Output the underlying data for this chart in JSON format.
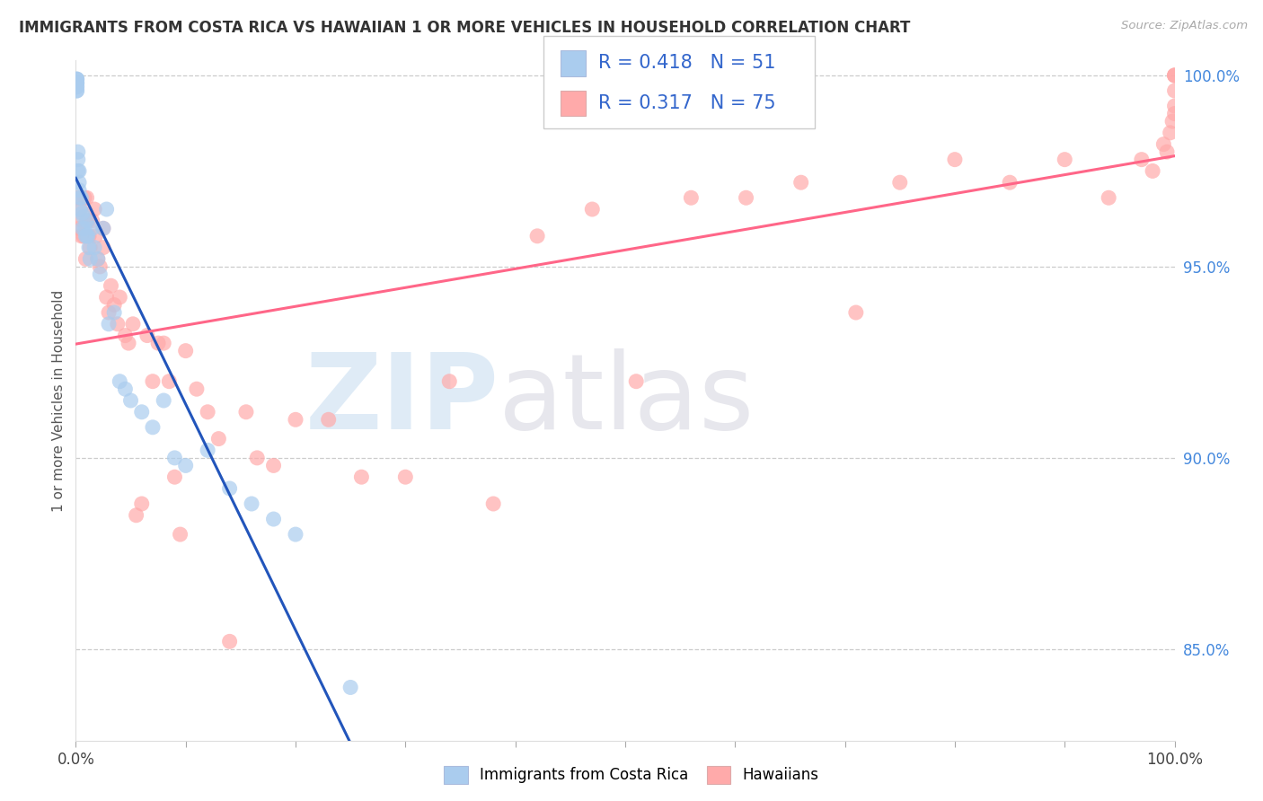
{
  "title": "IMMIGRANTS FROM COSTA RICA VS HAWAIIAN 1 OR MORE VEHICLES IN HOUSEHOLD CORRELATION CHART",
  "source": "Source: ZipAtlas.com",
  "ylabel": "1 or more Vehicles in Household",
  "legend_label1": "Immigrants from Costa Rica",
  "legend_label2": "Hawaiians",
  "R1": "0.418",
  "N1": "51",
  "R2": "0.317",
  "N2": "75",
  "color_blue": "#AACCEE",
  "color_pink": "#FFAAAA",
  "color_blue_line": "#2255BB",
  "color_pink_line": "#FF6688",
  "xlim": [
    0.0,
    1.0
  ],
  "ylim": [
    0.826,
    1.004
  ],
  "hlines": [
    0.85,
    0.9,
    0.95,
    1.0
  ],
  "right_ytick_labels": [
    "85.0%",
    "90.0%",
    "95.0%",
    "100.0%"
  ],
  "right_ytick_values": [
    0.85,
    0.9,
    0.95,
    1.0
  ],
  "blue_x": [
    0.001,
    0.001,
    0.001,
    0.001,
    0.001,
    0.001,
    0.001,
    0.001,
    0.001,
    0.001,
    0.002,
    0.002,
    0.002,
    0.003,
    0.003,
    0.003,
    0.004,
    0.004,
    0.005,
    0.006,
    0.006,
    0.007,
    0.008,
    0.009,
    0.01,
    0.01,
    0.011,
    0.012,
    0.013,
    0.015,
    0.017,
    0.02,
    0.022,
    0.025,
    0.028,
    0.03,
    0.035,
    0.04,
    0.045,
    0.05,
    0.06,
    0.07,
    0.08,
    0.09,
    0.1,
    0.12,
    0.14,
    0.16,
    0.18,
    0.2,
    0.25
  ],
  "blue_y": [
    0.999,
    0.999,
    0.999,
    0.998,
    0.998,
    0.998,
    0.997,
    0.997,
    0.996,
    0.996,
    0.98,
    0.978,
    0.975,
    0.975,
    0.972,
    0.97,
    0.968,
    0.965,
    0.968,
    0.964,
    0.96,
    0.963,
    0.96,
    0.958,
    0.962,
    0.958,
    0.958,
    0.955,
    0.952,
    0.96,
    0.955,
    0.952,
    0.948,
    0.96,
    0.965,
    0.935,
    0.938,
    0.92,
    0.918,
    0.915,
    0.912,
    0.908,
    0.915,
    0.9,
    0.898,
    0.902,
    0.892,
    0.888,
    0.884,
    0.88,
    0.84
  ],
  "pink_x": [
    0.002,
    0.003,
    0.004,
    0.005,
    0.006,
    0.007,
    0.008,
    0.009,
    0.01,
    0.011,
    0.012,
    0.013,
    0.015,
    0.017,
    0.018,
    0.02,
    0.022,
    0.025,
    0.025,
    0.028,
    0.03,
    0.032,
    0.035,
    0.038,
    0.04,
    0.045,
    0.048,
    0.052,
    0.055,
    0.06,
    0.065,
    0.07,
    0.075,
    0.08,
    0.085,
    0.09,
    0.095,
    0.1,
    0.11,
    0.12,
    0.13,
    0.14,
    0.155,
    0.165,
    0.18,
    0.2,
    0.23,
    0.26,
    0.3,
    0.34,
    0.38,
    0.42,
    0.47,
    0.51,
    0.56,
    0.61,
    0.66,
    0.71,
    0.75,
    0.8,
    0.85,
    0.9,
    0.94,
    0.97,
    0.98,
    0.99,
    0.993,
    0.996,
    0.998,
    1.0,
    1.0,
    1.0,
    1.0,
    1.0,
    1.0
  ],
  "pink_y": [
    0.968,
    0.96,
    0.965,
    0.958,
    0.962,
    0.958,
    0.968,
    0.952,
    0.968,
    0.962,
    0.958,
    0.955,
    0.962,
    0.965,
    0.958,
    0.952,
    0.95,
    0.96,
    0.955,
    0.942,
    0.938,
    0.945,
    0.94,
    0.935,
    0.942,
    0.932,
    0.93,
    0.935,
    0.885,
    0.888,
    0.932,
    0.92,
    0.93,
    0.93,
    0.92,
    0.895,
    0.88,
    0.928,
    0.918,
    0.912,
    0.905,
    0.852,
    0.912,
    0.9,
    0.898,
    0.91,
    0.91,
    0.895,
    0.895,
    0.92,
    0.888,
    0.958,
    0.965,
    0.92,
    0.968,
    0.968,
    0.972,
    0.938,
    0.972,
    0.978,
    0.972,
    0.978,
    0.968,
    0.978,
    0.975,
    0.982,
    0.98,
    0.985,
    0.988,
    0.99,
    0.992,
    0.996,
    1.0,
    1.0,
    1.0
  ],
  "bg_color": "#FFFFFF"
}
